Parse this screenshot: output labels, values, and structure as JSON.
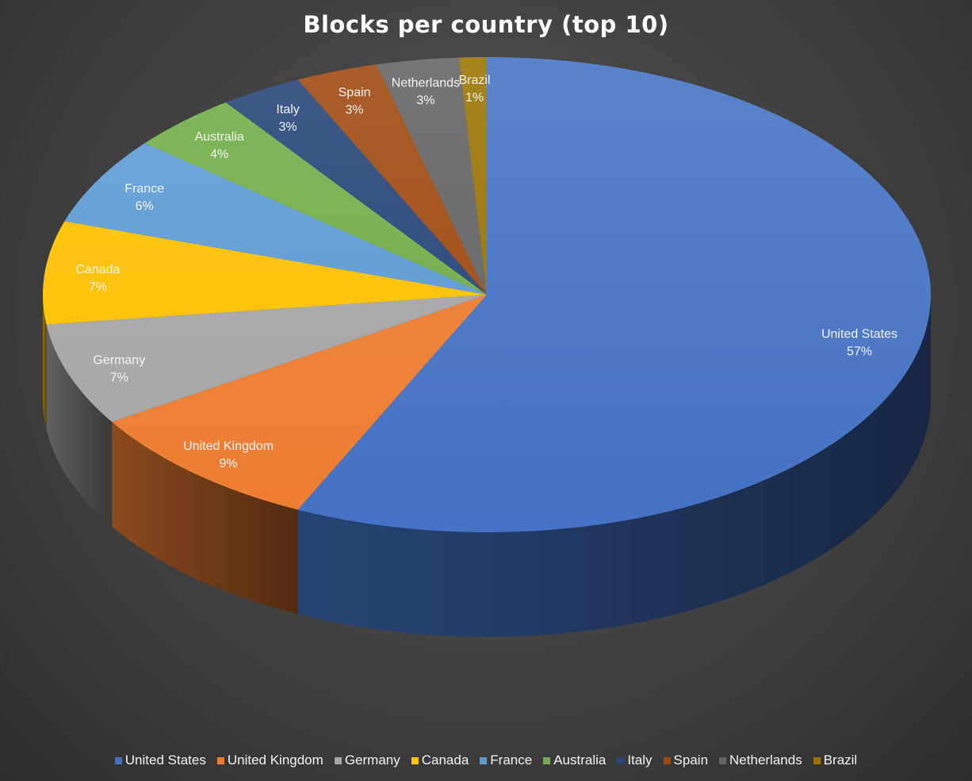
{
  "chart_data": {
    "type": "pie",
    "title": "Blocks per country (top 10)",
    "categories": [
      "United States",
      "United Kingdom",
      "Germany",
      "Canada",
      "France",
      "Australia",
      "Italy",
      "Spain",
      "Netherlands",
      "Brazil"
    ],
    "values": [
      57,
      9,
      7,
      7,
      6,
      4,
      3,
      3,
      3,
      1
    ],
    "value_labels": [
      "57%",
      "9%",
      "7%",
      "7%",
      "6%",
      "4%",
      "3%",
      "3%",
      "3%",
      "1%"
    ],
    "unit": "%",
    "colors": [
      "#4472C4",
      "#ED7D31",
      "#A5A5A5",
      "#FFC000",
      "#5B9BD5",
      "#70AD47",
      "#264478",
      "#9E480E",
      "#636363",
      "#997300"
    ],
    "style": "3D pie",
    "legend_position": "bottom"
  }
}
